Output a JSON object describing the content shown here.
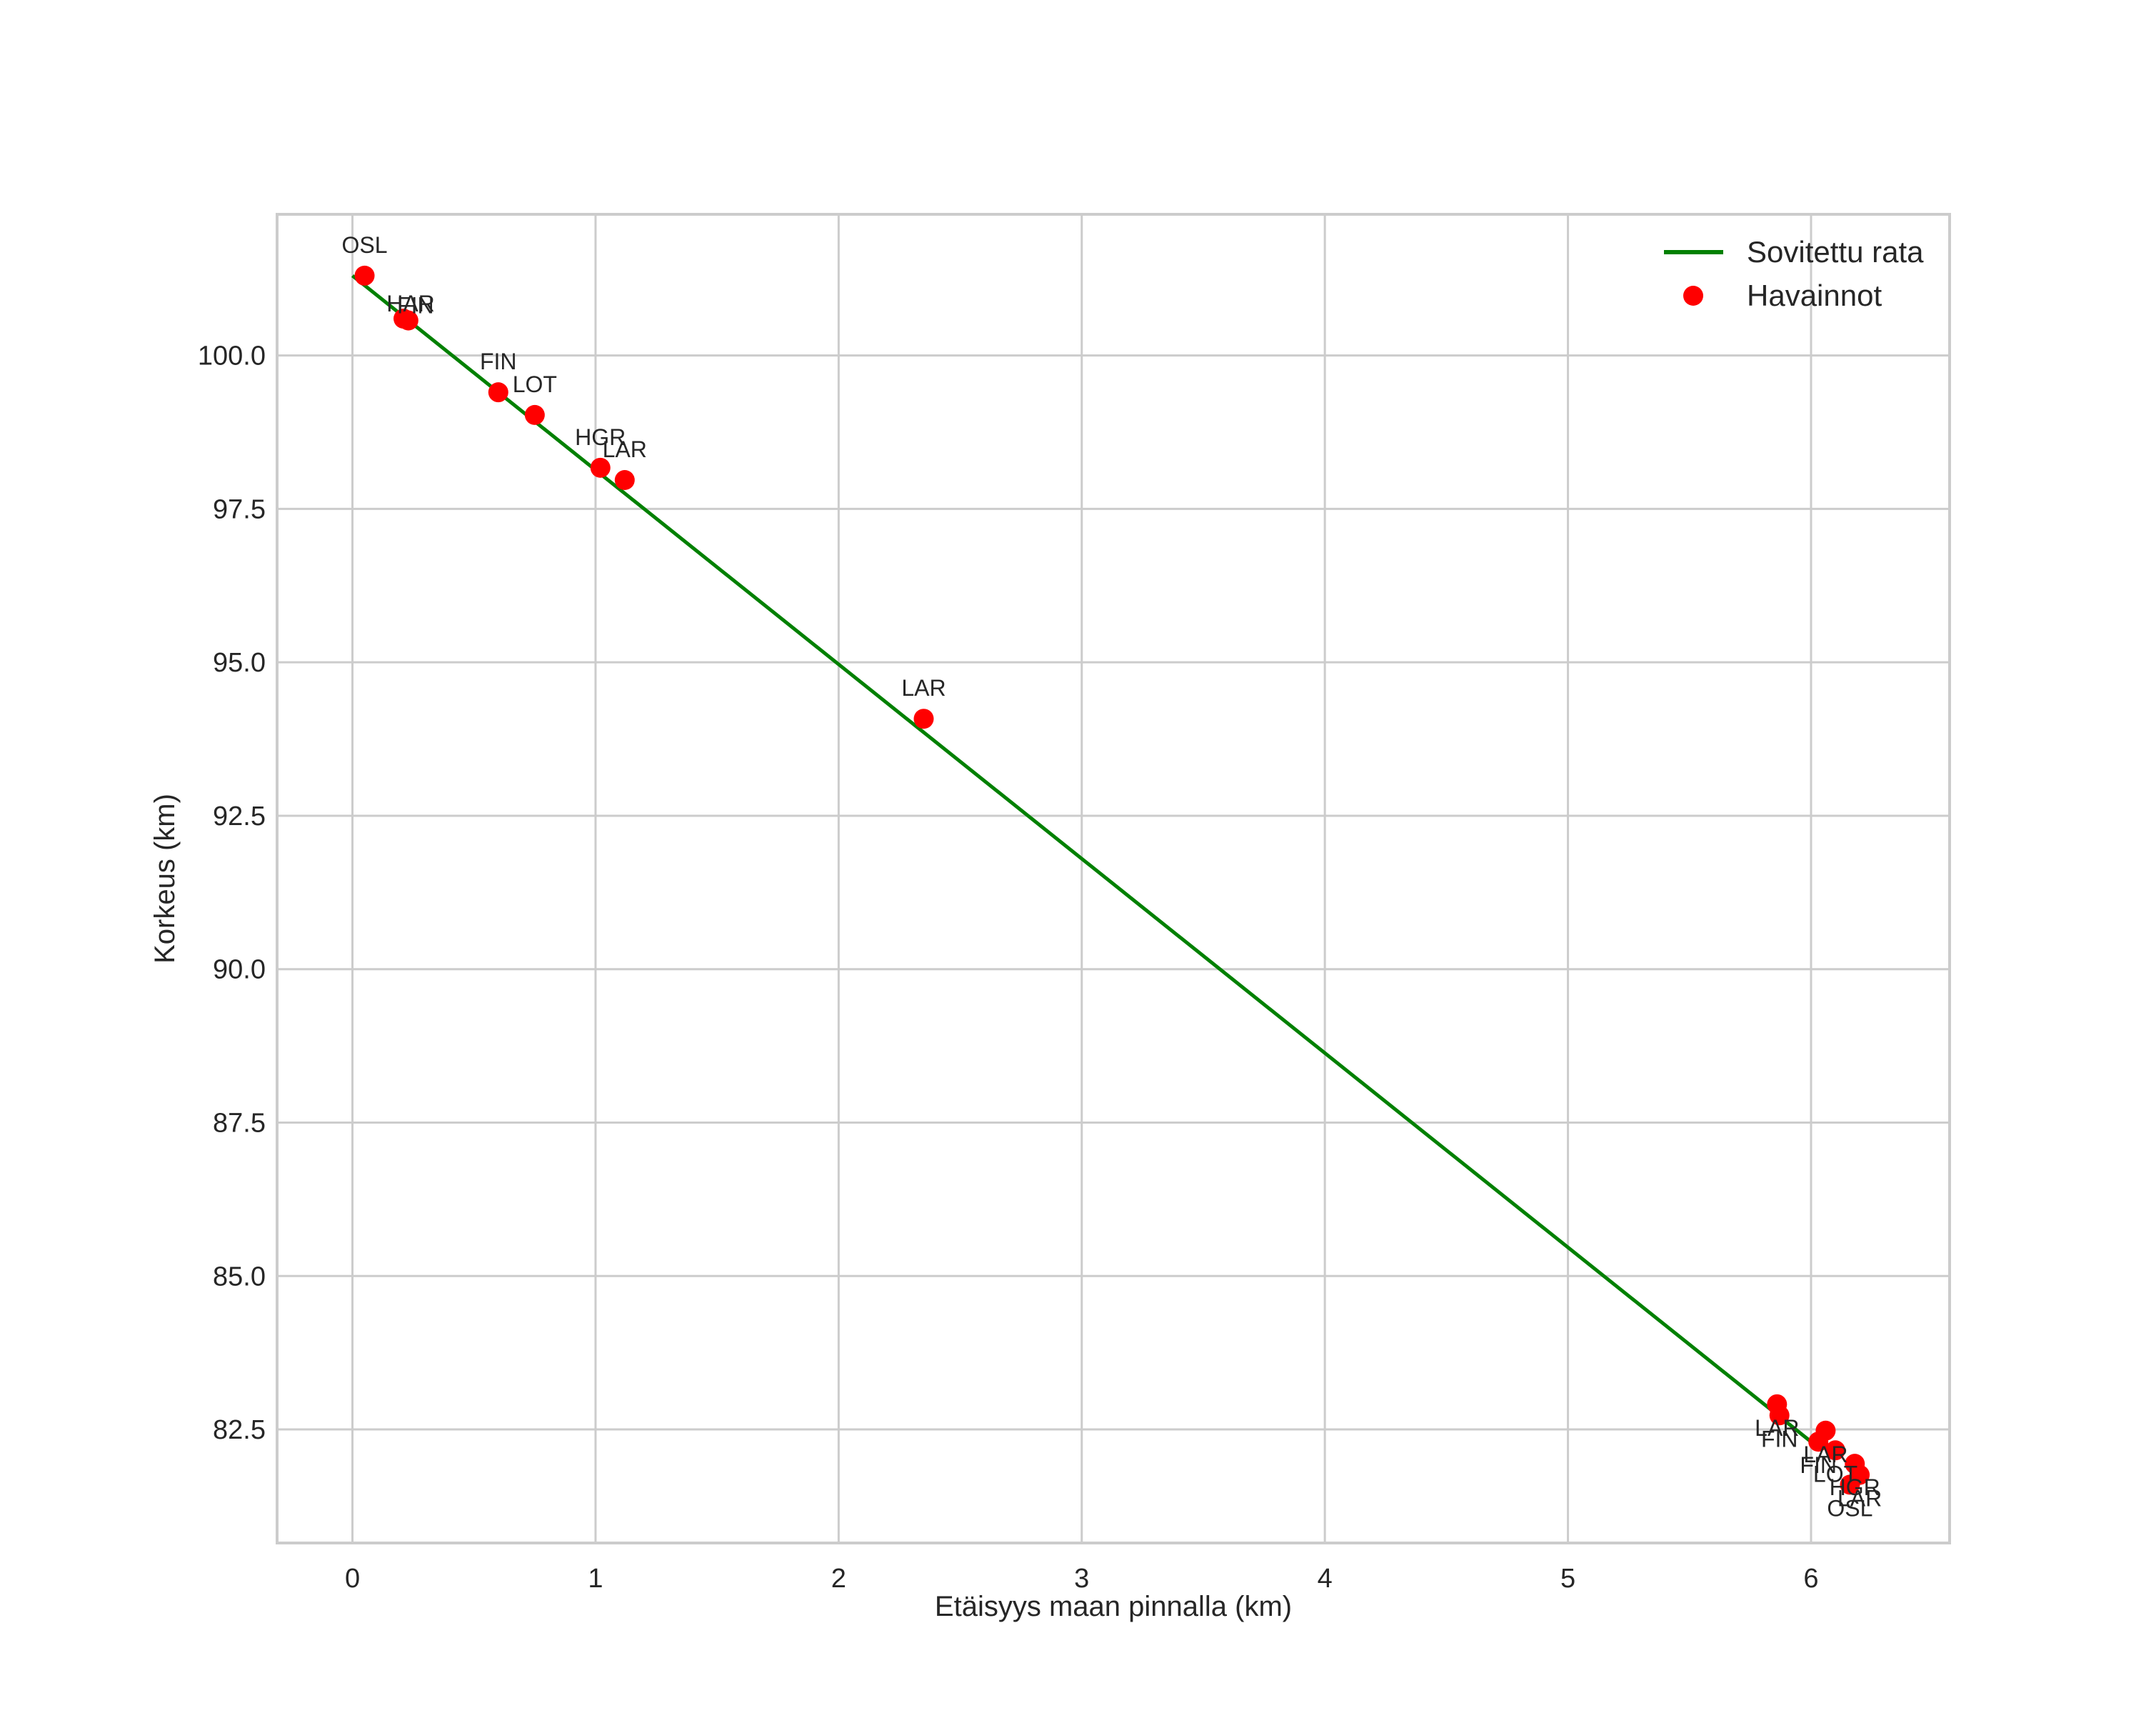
{
  "chart_data": {
    "type": "scatter",
    "title": "",
    "xlabel": "Etäisyys maan pinnalla (km)",
    "ylabel": "Korkeus (km)",
    "xlim": [
      -0.31,
      6.57
    ],
    "ylim": [
      80.65,
      102.3
    ],
    "xticks": [
      0,
      1,
      2,
      3,
      4,
      5,
      6
    ],
    "xtick_labels": [
      "0",
      "1",
      "2",
      "3",
      "4",
      "5",
      "6"
    ],
    "yticks": [
      82.5,
      85.0,
      87.5,
      90.0,
      92.5,
      95.0,
      97.5,
      100.0
    ],
    "ytick_labels": [
      "82.5",
      "85.0",
      "87.5",
      "90.0",
      "92.5",
      "95.0",
      "97.5",
      "100.0"
    ],
    "grid": true,
    "legend_position": "upper right",
    "series": [
      {
        "name": "Sovitettu rata",
        "type": "line",
        "color": "#008000",
        "x": [
          0.0,
          6.0
        ],
        "y": [
          101.3,
          82.3
        ]
      },
      {
        "name": "Havainnot",
        "type": "scatter",
        "color": "#ff0000",
        "points": [
          {
            "x": 0.05,
            "y": 101.3,
            "label": "OSL"
          },
          {
            "x": 0.21,
            "y": 100.6,
            "label": "HAR"
          },
          {
            "x": 0.23,
            "y": 100.57,
            "label": "FIN"
          },
          {
            "x": 0.6,
            "y": 99.4,
            "label": "FIN"
          },
          {
            "x": 0.75,
            "y": 99.03,
            "label": "LOT"
          },
          {
            "x": 1.02,
            "y": 98.17,
            "label": "HGR"
          },
          {
            "x": 1.12,
            "y": 97.97,
            "label": "LAR"
          },
          {
            "x": 2.35,
            "y": 94.08,
            "label": "LAR"
          },
          {
            "x": 5.86,
            "y": 82.91,
            "label": "LAR"
          },
          {
            "x": 5.87,
            "y": 82.73,
            "label": "FIN"
          },
          {
            "x": 6.06,
            "y": 82.48,
            "label": "LAR"
          },
          {
            "x": 6.03,
            "y": 82.3,
            "label": "FIN"
          },
          {
            "x": 6.1,
            "y": 82.16,
            "label": "LOT"
          },
          {
            "x": 6.18,
            "y": 81.94,
            "label": "HGR"
          },
          {
            "x": 6.2,
            "y": 81.76,
            "label": "LAR"
          },
          {
            "x": 6.16,
            "y": 81.6,
            "label": "OSL"
          }
        ]
      }
    ]
  },
  "legend": {
    "items": [
      {
        "label": "Sovitettu rata",
        "marker": "line",
        "color": "#008000"
      },
      {
        "label": "Havainnot",
        "marker": "dot",
        "color": "#ff0000"
      }
    ]
  }
}
